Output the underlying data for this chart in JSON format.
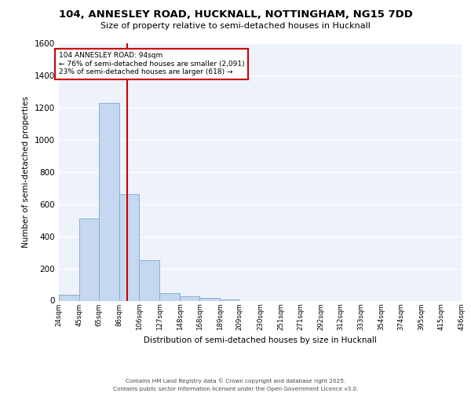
{
  "title": "104, ANNESLEY ROAD, HUCKNALL, NOTTINGHAM, NG15 7DD",
  "subtitle": "Size of property relative to semi-detached houses in Hucknall",
  "xlabel": "Distribution of semi-detached houses by size in Hucknall",
  "ylabel": "Number of semi-detached properties",
  "bin_edges": [
    24,
    45,
    65,
    86,
    106,
    127,
    148,
    168,
    189,
    209,
    230,
    251,
    271,
    292,
    312,
    333,
    354,
    374,
    395,
    415,
    436
  ],
  "bar_heights": [
    35,
    510,
    1230,
    660,
    250,
    45,
    25,
    15,
    5,
    0,
    0,
    0,
    0,
    0,
    0,
    0,
    0,
    0,
    0,
    0
  ],
  "bar_color": "#c5d8f0",
  "bar_edgecolor": "#7ba7d0",
  "property_size": 94,
  "vline_color": "#cc0000",
  "annotation_text": "104 ANNESLEY ROAD: 94sqm\n← 76% of semi-detached houses are smaller (2,091)\n23% of semi-detached houses are larger (618) →",
  "ylim": [
    0,
    1600
  ],
  "yticks": [
    0,
    200,
    400,
    600,
    800,
    1000,
    1200,
    1400,
    1600
  ],
  "background_color": "#edf2fb",
  "grid_color": "#ffffff",
  "footer_line1": "Contains HM Land Registry data © Crown copyright and database right 2025.",
  "footer_line2": "Contains public sector information licensed under the Open Government Licence v3.0."
}
